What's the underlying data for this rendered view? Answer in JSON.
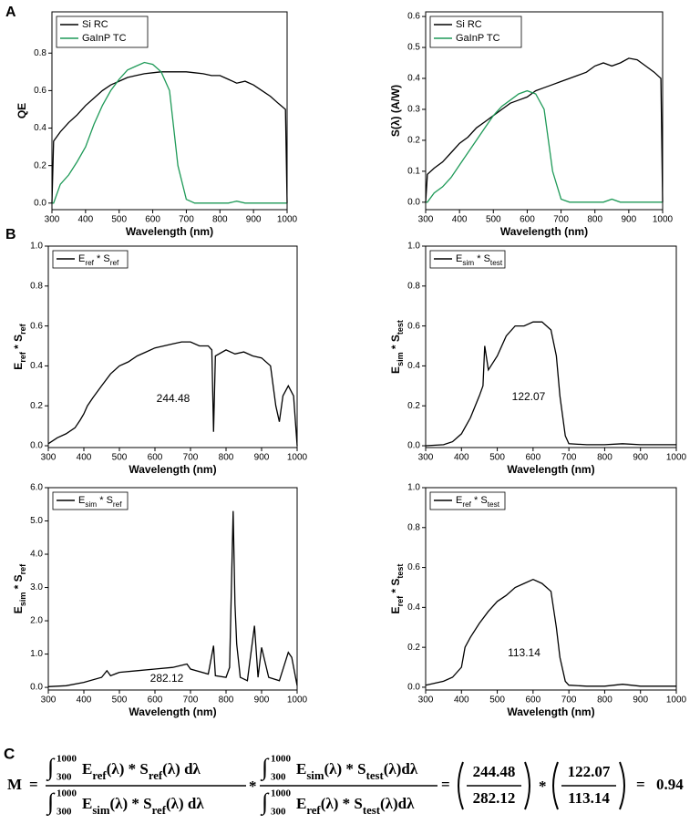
{
  "chart_data": [
    {
      "type": "line",
      "panel": "A",
      "xlabel": "Wavelength (nm)",
      "ylabel": "QE",
      "xlim": [
        300,
        1000
      ],
      "xticks": [
        300,
        400,
        500,
        600,
        700,
        800,
        900,
        1000
      ],
      "ylim": [
        -0.035,
        1.02
      ],
      "yticks": [
        {
          "value": 0,
          "label": "0.0"
        },
        {
          "value": 0.2,
          "label": "0.2"
        },
        {
          "value": 0.4,
          "label": "0.4"
        },
        {
          "value": 0.6,
          "label": "0.6"
        },
        {
          "value": 0.8,
          "label": "0.8"
        }
      ],
      "x": [
        300,
        305,
        325,
        350,
        375,
        400,
        425,
        450,
        475,
        500,
        525,
        550,
        575,
        600,
        625,
        650,
        675,
        700,
        725,
        750,
        775,
        800,
        825,
        850,
        875,
        900,
        925,
        950,
        975,
        995,
        1000
      ],
      "series": [
        {
          "name": "Si RC",
          "color": "#000000",
          "values": [
            0,
            0.33,
            0.38,
            0.43,
            0.47,
            0.52,
            0.56,
            0.6,
            0.63,
            0.65,
            0.67,
            0.68,
            0.69,
            0.695,
            0.7,
            0.7,
            0.7,
            0.7,
            0.695,
            0.69,
            0.68,
            0.68,
            0.66,
            0.64,
            0.65,
            0.63,
            0.6,
            0.57,
            0.53,
            0.5,
            0
          ]
        },
        {
          "name": "GaInP TC",
          "color": "#1f9a58",
          "values": [
            0,
            0,
            0.1,
            0.15,
            0.22,
            0.3,
            0.42,
            0.52,
            0.6,
            0.66,
            0.71,
            0.73,
            0.75,
            0.74,
            0.7,
            0.6,
            0.2,
            0.02,
            0,
            0,
            0,
            0,
            0,
            0.01,
            0,
            0,
            0,
            0,
            0,
            0,
            0
          ]
        }
      ]
    },
    {
      "type": "line",
      "xlabel": "Wavelength (nm)",
      "ylabel": "S(λ) (A/W)",
      "xlim": [
        300,
        1000
      ],
      "xticks": [
        300,
        400,
        500,
        600,
        700,
        800,
        900,
        1000
      ],
      "ylim": [
        -0.024,
        0.615
      ],
      "yticks": [
        {
          "value": 0,
          "label": "0.0"
        },
        {
          "value": 0.1,
          "label": "0.1"
        },
        {
          "value": 0.2,
          "label": "0.2"
        },
        {
          "value": 0.3,
          "label": "0.3"
        },
        {
          "value": 0.4,
          "label": "0.4"
        },
        {
          "value": 0.5,
          "label": "0.5"
        },
        {
          "value": 0.6,
          "label": "0.6"
        }
      ],
      "x": [
        300,
        305,
        325,
        350,
        375,
        400,
        425,
        450,
        475,
        500,
        525,
        550,
        575,
        600,
        625,
        650,
        675,
        700,
        725,
        750,
        775,
        800,
        825,
        850,
        875,
        900,
        925,
        950,
        975,
        995,
        1000
      ],
      "series": [
        {
          "name": "Si RC",
          "color": "#000000",
          "values": [
            0,
            0.09,
            0.11,
            0.13,
            0.16,
            0.19,
            0.21,
            0.24,
            0.26,
            0.28,
            0.3,
            0.32,
            0.33,
            0.34,
            0.36,
            0.37,
            0.38,
            0.39,
            0.4,
            0.41,
            0.42,
            0.44,
            0.45,
            0.44,
            0.45,
            0.465,
            0.46,
            0.44,
            0.42,
            0.4,
            0
          ]
        },
        {
          "name": "GaInP TC",
          "color": "#1f9a58",
          "values": [
            0,
            0,
            0.03,
            0.05,
            0.08,
            0.12,
            0.16,
            0.2,
            0.24,
            0.28,
            0.31,
            0.33,
            0.35,
            0.36,
            0.35,
            0.3,
            0.1,
            0.01,
            0,
            0,
            0,
            0,
            0,
            0.01,
            0,
            0,
            0,
            0,
            0,
            0,
            0
          ]
        }
      ]
    },
    {
      "type": "line",
      "panel": "B",
      "xlabel": "Wavelength (nm)",
      "ylabel": "Eref * Sref",
      "annotation": "244.48",
      "xlim": [
        300,
        1000
      ],
      "xticks": [
        300,
        400,
        500,
        600,
        700,
        800,
        900,
        1000
      ],
      "ylim": [
        -0.009,
        1.0
      ],
      "yticks": [
        {
          "value": 0,
          "label": "0.0"
        },
        {
          "value": 0.2,
          "label": "0.2"
        },
        {
          "value": 0.4,
          "label": "0.4"
        },
        {
          "value": 0.6,
          "label": "0.6"
        },
        {
          "value": 0.8,
          "label": "0.8"
        },
        {
          "value": 1,
          "label": "1.0"
        }
      ],
      "x": [
        300,
        325,
        350,
        375,
        390,
        400,
        410,
        425,
        450,
        475,
        500,
        525,
        550,
        575,
        600,
        625,
        650,
        675,
        700,
        725,
        750,
        760,
        765,
        770,
        800,
        825,
        850,
        875,
        900,
        925,
        940,
        950,
        960,
        975,
        990,
        1000
      ],
      "series": [
        {
          "name": "Eref * Sref",
          "color": "#000000",
          "values": [
            0.01,
            0.04,
            0.06,
            0.09,
            0.13,
            0.16,
            0.2,
            0.24,
            0.3,
            0.36,
            0.4,
            0.42,
            0.45,
            0.47,
            0.49,
            0.5,
            0.51,
            0.52,
            0.52,
            0.5,
            0.5,
            0.48,
            0.07,
            0.45,
            0.48,
            0.46,
            0.47,
            0.45,
            0.44,
            0.4,
            0.2,
            0.12,
            0.25,
            0.3,
            0.25,
            0
          ]
        }
      ]
    },
    {
      "type": "line",
      "xlabel": "Wavelength (nm)",
      "ylabel": "Esim * Stest",
      "annotation": "122.07",
      "xlim": [
        300,
        1000
      ],
      "xticks": [
        300,
        400,
        500,
        600,
        700,
        800,
        900,
        1000
      ],
      "ylim": [
        -0.009,
        1.0
      ],
      "yticks": [
        {
          "value": 0,
          "label": "0.0"
        },
        {
          "value": 0.2,
          "label": "0.2"
        },
        {
          "value": 0.4,
          "label": "0.4"
        },
        {
          "value": 0.6,
          "label": "0.6"
        },
        {
          "value": 0.8,
          "label": "0.8"
        },
        {
          "value": 1,
          "label": "1.0"
        }
      ],
      "x": [
        300,
        350,
        375,
        400,
        425,
        450,
        460,
        465,
        475,
        500,
        525,
        550,
        575,
        600,
        625,
        650,
        665,
        675,
        690,
        700,
        750,
        800,
        850,
        900,
        950,
        1000
      ],
      "series": [
        {
          "name": "Esim * Stest",
          "color": "#000000",
          "values": [
            0,
            0.005,
            0.02,
            0.06,
            0.14,
            0.25,
            0.3,
            0.5,
            0.38,
            0.45,
            0.55,
            0.6,
            0.6,
            0.62,
            0.62,
            0.58,
            0.45,
            0.25,
            0.05,
            0.01,
            0.005,
            0.005,
            0.01,
            0.005,
            0.005,
            0.005
          ]
        }
      ]
    },
    {
      "type": "line",
      "xlabel": "Wavelength (nm)",
      "ylabel": "Esim * Sref",
      "annotation": "282.12",
      "xlim": [
        300,
        1000
      ],
      "xticks": [
        300,
        400,
        500,
        600,
        700,
        800,
        900,
        1000
      ],
      "ylim": [
        -0.08,
        6.0
      ],
      "yticks": [
        {
          "value": 0,
          "label": "0.0"
        },
        {
          "value": 1,
          "label": "1.0"
        },
        {
          "value": 2,
          "label": "2.0"
        },
        {
          "value": 3,
          "label": "3.0"
        },
        {
          "value": 4,
          "label": "4.0"
        },
        {
          "value": 5,
          "label": "5.0"
        },
        {
          "value": 6,
          "label": "6.0"
        }
      ],
      "x": [
        300,
        350,
        400,
        450,
        465,
        475,
        500,
        550,
        600,
        650,
        690,
        700,
        750,
        765,
        770,
        800,
        810,
        820,
        825,
        830,
        840,
        860,
        880,
        890,
        900,
        920,
        950,
        975,
        985,
        1000
      ],
      "series": [
        {
          "name": "Esim * Sref",
          "color": "#000000",
          "values": [
            0.02,
            0.05,
            0.15,
            0.3,
            0.5,
            0.35,
            0.45,
            0.5,
            0.55,
            0.6,
            0.7,
            0.55,
            0.4,
            1.25,
            0.35,
            0.3,
            0.6,
            5.3,
            2.5,
            1.3,
            0.3,
            0.2,
            1.85,
            0.3,
            1.2,
            0.3,
            0.2,
            1.05,
            0.9,
            0.05
          ]
        }
      ]
    },
    {
      "type": "line",
      "xlabel": "Wavelength (nm)",
      "ylabel": "Eref * Stest",
      "annotation": "113.14",
      "xlim": [
        300,
        1000
      ],
      "xticks": [
        300,
        400,
        500,
        600,
        700,
        800,
        900,
        1000
      ],
      "ylim": [
        -0.014,
        1.0
      ],
      "yticks": [
        {
          "value": 0,
          "label": "0.0"
        },
        {
          "value": 0.2,
          "label": "0.2"
        },
        {
          "value": 0.4,
          "label": "0.4"
        },
        {
          "value": 0.6,
          "label": "0.6"
        },
        {
          "value": 0.8,
          "label": "0.8"
        },
        {
          "value": 1,
          "label": "1.0"
        }
      ],
      "x": [
        300,
        350,
        375,
        400,
        410,
        425,
        450,
        475,
        500,
        525,
        550,
        575,
        600,
        625,
        650,
        665,
        675,
        690,
        700,
        750,
        800,
        850,
        900,
        950,
        1000
      ],
      "series": [
        {
          "name": "Eref * Stest",
          "color": "#000000",
          "values": [
            0.01,
            0.03,
            0.05,
            0.1,
            0.2,
            0.25,
            0.32,
            0.38,
            0.43,
            0.46,
            0.5,
            0.52,
            0.54,
            0.52,
            0.48,
            0.3,
            0.15,
            0.03,
            0.01,
            0.005,
            0.005,
            0.015,
            0.005,
            0.005,
            0.005
          ]
        }
      ]
    }
  ],
  "formula": {
    "panel": "C",
    "lhs": "M",
    "equals": "=",
    "times": "*",
    "integral": "∫",
    "upper": "1000",
    "lower": "300",
    "n1": "Eref(λ) * Sref(λ) dλ",
    "d1": "Esim(λ) * Sref(λ) dλ",
    "n2": "Esim(λ) * Stest(λ)dλ",
    "d2": "Eref(λ) * Stest(λ)dλ",
    "ratio1": [
      "244.48",
      "282.12"
    ],
    "ratio2": [
      "122.07",
      "113.14"
    ],
    "result": "0.94"
  }
}
